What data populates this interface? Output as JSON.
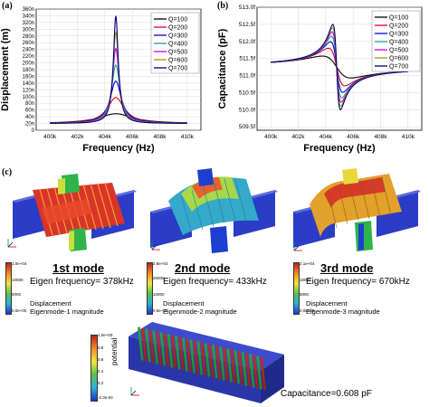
{
  "panels": {
    "a": {
      "label": "(a)"
    },
    "b": {
      "label": "(b)"
    },
    "c": {
      "label": "(c)"
    }
  },
  "chart_data": [
    {
      "type": "line",
      "panel": "a",
      "xlabel": "Frequency (Hz)",
      "ylabel": "Displacement (m)",
      "xlim": [
        399000,
        411000
      ],
      "ylim": [
        0,
        360
      ],
      "x_ticks": [
        {
          "v": 400000,
          "label": "400k"
        },
        {
          "v": 402000,
          "label": "402k"
        },
        {
          "v": 404000,
          "label": "404k"
        },
        {
          "v": 406000,
          "label": "406k"
        },
        {
          "v": 408000,
          "label": "408k"
        },
        {
          "v": 410000,
          "label": "410k"
        }
      ],
      "y_ticks": [
        {
          "v": 0,
          "label": "0"
        },
        {
          "v": 20,
          "label": "20n"
        },
        {
          "v": 40,
          "label": "40n"
        },
        {
          "v": 60,
          "label": "60n"
        },
        {
          "v": 80,
          "label": "80n"
        },
        {
          "v": 100,
          "label": "100n"
        },
        {
          "v": 120,
          "label": "120n"
        },
        {
          "v": 140,
          "label": "140n"
        },
        {
          "v": 160,
          "label": "160n"
        },
        {
          "v": 180,
          "label": "180n"
        },
        {
          "v": 200,
          "label": "200n"
        },
        {
          "v": 220,
          "label": "220n"
        },
        {
          "v": 240,
          "label": "240n"
        },
        {
          "v": 260,
          "label": "260n"
        },
        {
          "v": 280,
          "label": "280n"
        },
        {
          "v": 300,
          "label": "300n"
        },
        {
          "v": 320,
          "label": "320n"
        },
        {
          "v": 340,
          "label": "340n"
        },
        {
          "v": 360,
          "label": "360n"
        }
      ],
      "grid": true,
      "legend_position": "top-right",
      "f0": 404800,
      "baseline": 20,
      "series": [
        {
          "name": "Q=100",
          "color": "#000000",
          "peak": 49
        },
        {
          "name": "Q=200",
          "color": "#e0001b",
          "peak": 97
        },
        {
          "name": "Q=300",
          "color": "#0000dd",
          "peak": 146
        },
        {
          "name": "Q=400",
          "color": "#14a58c",
          "peak": 194
        },
        {
          "name": "Q=500",
          "color": "#d400d4",
          "peak": 243
        },
        {
          "name": "Q=600",
          "color": "#9a9a00",
          "peak": 291
        },
        {
          "name": "Q=700",
          "color": "#00007a",
          "peak": 340
        }
      ]
    },
    {
      "type": "line",
      "panel": "b",
      "xlabel": "Frequency (Hz)",
      "ylabel": "Capacitance (pF)",
      "xlim": [
        399000,
        411000
      ],
      "ylim": [
        509.4,
        513.0
      ],
      "x_ticks": [
        {
          "v": 400000,
          "label": "400k"
        },
        {
          "v": 402000,
          "label": "402k"
        },
        {
          "v": 404000,
          "label": "404k"
        },
        {
          "v": 406000,
          "label": "406k"
        },
        {
          "v": 408000,
          "label": "408k"
        },
        {
          "v": 410000,
          "label": "410k"
        }
      ],
      "y_ticks": [
        {
          "v": 509.5,
          "label": "509.5f"
        },
        {
          "v": 510.0,
          "label": "510.0f"
        },
        {
          "v": 510.5,
          "label": "510.5f"
        },
        {
          "v": 511.0,
          "label": "511.0f"
        },
        {
          "v": 511.5,
          "label": "511.5f"
        },
        {
          "v": 512.0,
          "label": "512.0f"
        },
        {
          "v": 512.5,
          "label": "512.5f"
        },
        {
          "v": 513.0,
          "label": "513.0f"
        }
      ],
      "grid": true,
      "legend_position": "top-right",
      "f0": 404800,
      "baseline": 511.25,
      "series": [
        {
          "name": "Q=100",
          "color": "#000000",
          "amp": 0.32
        },
        {
          "name": "Q=200",
          "color": "#e0001b",
          "amp": 0.55
        },
        {
          "name": "Q=300",
          "color": "#0000dd",
          "amp": 0.74
        },
        {
          "name": "Q=400",
          "color": "#14a58c",
          "amp": 0.9
        },
        {
          "name": "Q=500",
          "color": "#d400d4",
          "amp": 1.03
        },
        {
          "name": "Q=600",
          "color": "#9a9a00",
          "amp": 1.15
        },
        {
          "name": "Q=700",
          "color": "#00007a",
          "amp": 1.25
        }
      ]
    }
  ],
  "modes": [
    {
      "title": "1st mode",
      "eigen": "Eigen frequency= 378kHz",
      "disp_label": "Displacement",
      "mag_label": "Eigenmode-1 magnitude",
      "cbar_top": "1.0e+04",
      "cbar_mid": "10000",
      "cbar_mid2": "5000",
      "cbar_bottom": "0.0e+00"
    },
    {
      "title": "2nd mode",
      "eigen": "Eigen frequency= 433kHz",
      "disp_label": "Displacement",
      "mag_label": "Eigenmode-2 magnitude",
      "cbar_top": "2.8e+04",
      "cbar_mid": "20000",
      "cbar_mid2": "10000",
      "cbar_bottom": "0.0e+00"
    },
    {
      "title": "3rd mode",
      "eigen": "Eigen frequency= 670kHz",
      "disp_label": "Displacement",
      "mag_label": "Eigenmode-3 magnitude",
      "cbar_top": "2.1e+04",
      "cbar_mid": "10000",
      "cbar_mid2": "5000",
      "cbar_bottom": "0.0e+00"
    }
  ],
  "potential": {
    "label": "potential",
    "cbar_top": "1.0e+00",
    "ticks": [
      "0.8",
      "0.6",
      "0.4",
      "0.2"
    ],
    "cbar_bottom": "-2.3e-04",
    "capacitance": "Capacitance=0.608 pF"
  }
}
